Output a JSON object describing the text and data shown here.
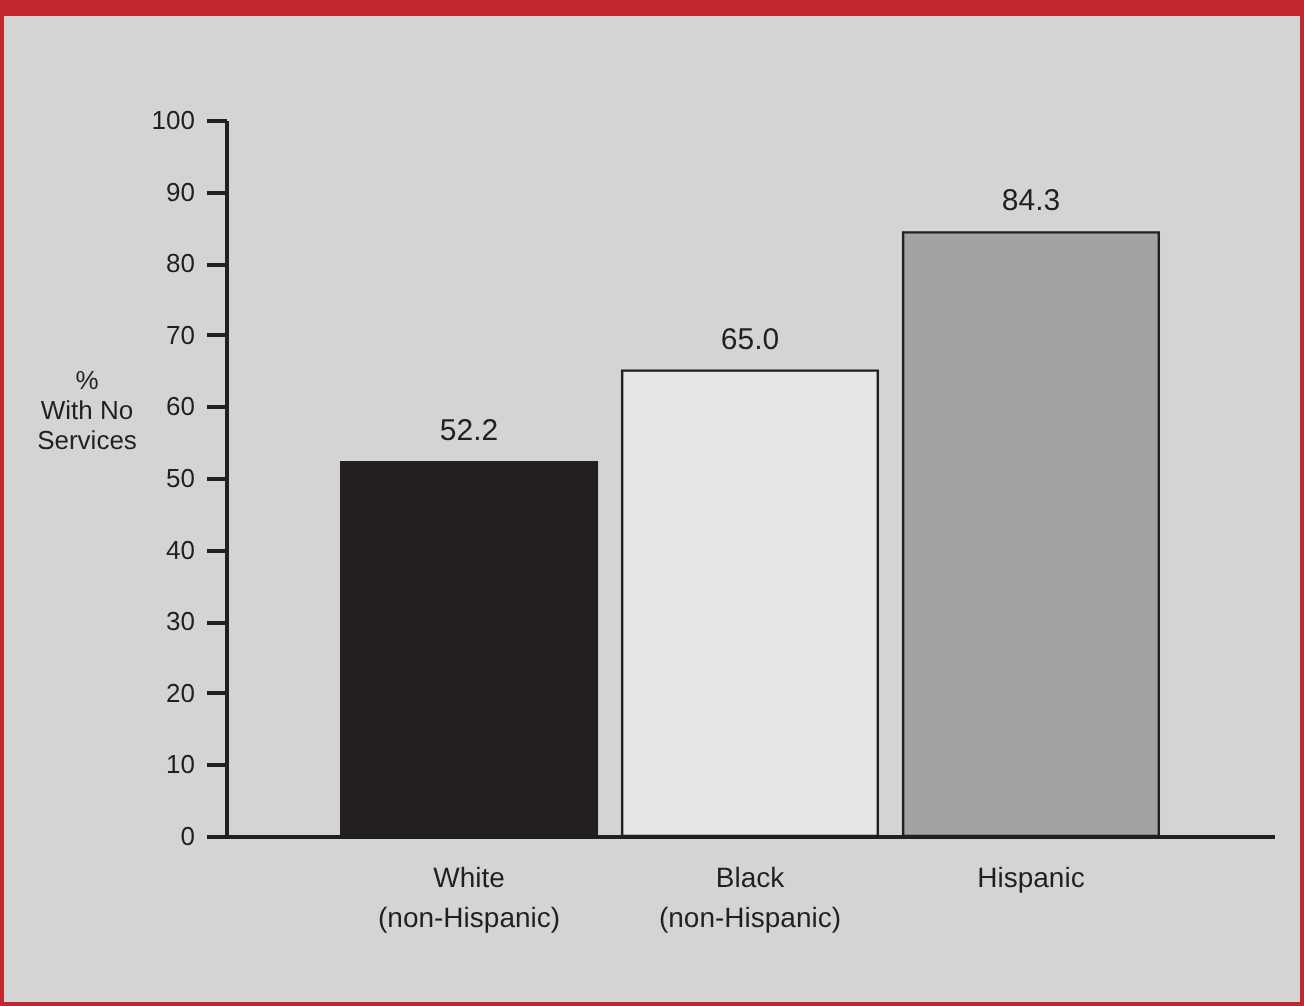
{
  "chart_data": {
    "type": "bar",
    "ylabel": "%\nWith No\nServices",
    "categories": [
      "White\n(non-Hispanic)",
      "Black\n(non-Hispanic)",
      "Hispanic"
    ],
    "values": [
      52.2,
      65.0,
      84.3
    ],
    "colors": [
      "#231f20",
      "#e6e6e6",
      "#a3a3a3"
    ],
    "ylim": [
      0,
      100
    ],
    "yticks": [
      0,
      10,
      20,
      30,
      40,
      50,
      60,
      70,
      80,
      90,
      100
    ],
    "data_labels": true,
    "value_labels": [
      "52.2",
      "65.0",
      "84.3"
    ],
    "grid": false
  }
}
